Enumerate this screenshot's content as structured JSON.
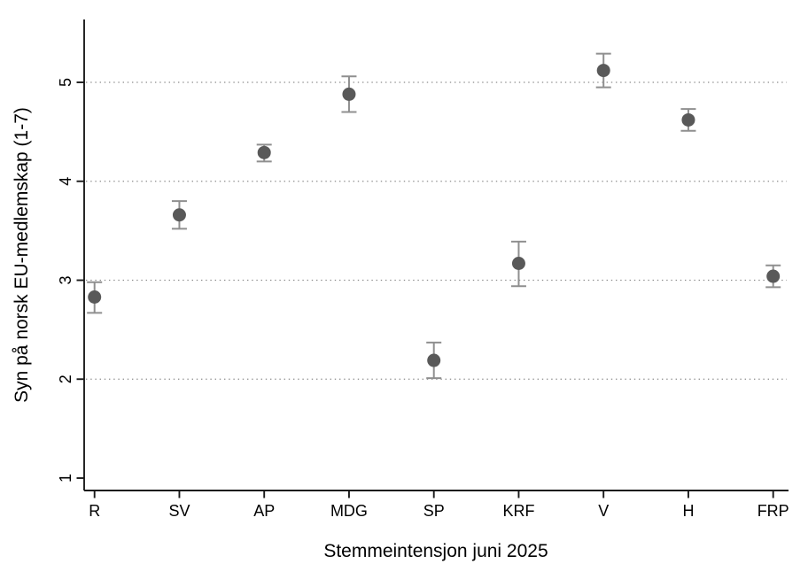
{
  "figure": {
    "background_color": "#ffffff"
  },
  "chart_data": {
    "type": "scatter",
    "subtype": "point-estimates-with-95ci-errorbars",
    "title": "",
    "xlabel": "Stemmeintensjon juni 2025",
    "ylabel": "Syn på norsk EU-medlemskap (1-7)",
    "categories": [
      "R",
      "SV",
      "AP",
      "MDG",
      "SP",
      "KRF",
      "V",
      "H",
      "FRP"
    ],
    "points": [
      {
        "label": "R",
        "mean": 2.83,
        "ci_low": 2.67,
        "ci_high": 2.98
      },
      {
        "label": "SV",
        "mean": 3.66,
        "ci_low": 3.52,
        "ci_high": 3.8
      },
      {
        "label": "AP",
        "mean": 4.29,
        "ci_low": 4.2,
        "ci_high": 4.37
      },
      {
        "label": "MDG",
        "mean": 4.88,
        "ci_low": 4.7,
        "ci_high": 5.06
      },
      {
        "label": "SP",
        "mean": 2.19,
        "ci_low": 2.01,
        "ci_high": 2.37
      },
      {
        "label": "KRF",
        "mean": 3.17,
        "ci_low": 2.94,
        "ci_high": 3.39
      },
      {
        "label": "V",
        "mean": 5.12,
        "ci_low": 4.95,
        "ci_high": 5.29
      },
      {
        "label": "H",
        "mean": 4.62,
        "ci_low": 4.51,
        "ci_high": 4.73
      },
      {
        "label": "FRP",
        "mean": 3.04,
        "ci_low": 2.93,
        "ci_high": 3.15
      }
    ],
    "yticks": [
      1,
      2,
      3,
      4,
      5
    ],
    "gridlines_at": [
      2,
      3,
      4,
      5
    ],
    "ylim": [
      0.85,
      5.65
    ],
    "grid": "horizontal dotted",
    "legend": "none",
    "marker_color": "#595959",
    "errorbar_color": "#8f8f8f",
    "axis_color": "#1a1a1a",
    "grid_color": "#8c8c8c"
  }
}
